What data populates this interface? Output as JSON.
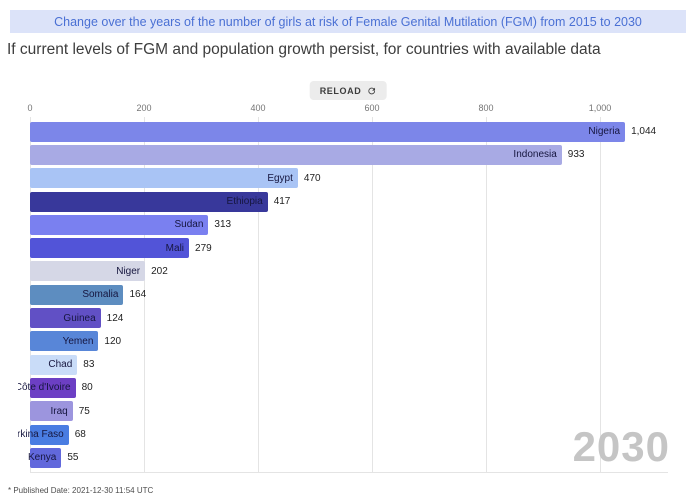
{
  "header": {
    "title": "Change over the years of the number of girls at risk of Female Genital Mutilation (FGM) from 2015 to 2030",
    "subtitle": "If current levels of FGM and population growth persist, for countries with available data"
  },
  "toolbar": {
    "reload_label": "RELOAD",
    "reload_icon": "refresh-icon"
  },
  "chart_data": {
    "type": "bar",
    "orientation": "horizontal",
    "title": "Change over the years of the number of girls at risk of Female Genital Mutilation (FGM) from 2015 to 2030",
    "subtitle": "If current levels of FGM and population growth persist, for countries with available data",
    "xlabel": "",
    "ylabel": "",
    "xlim": [
      0,
      1100
    ],
    "grid": true,
    "x_ticks": [
      0,
      200,
      400,
      600,
      800,
      1000
    ],
    "x_tick_labels": [
      "0",
      "200",
      "400",
      "600",
      "800",
      "1,000"
    ],
    "year_label": "2030",
    "bars": [
      {
        "label": "Nigeria",
        "value": 1044,
        "display_value": "1,044",
        "color": "#7c86e9"
      },
      {
        "label": "Indonesia",
        "value": 933,
        "display_value": "933",
        "color": "#a8aae4"
      },
      {
        "label": "Egypt",
        "value": 470,
        "display_value": "470",
        "color": "#a9c4f5"
      },
      {
        "label": "Ethiopia",
        "value": 417,
        "display_value": "417",
        "color": "#38389b"
      },
      {
        "label": "Sudan",
        "value": 313,
        "display_value": "313",
        "color": "#7a80f0"
      },
      {
        "label": "Mali",
        "value": 279,
        "display_value": "279",
        "color": "#5254d8"
      },
      {
        "label": "Niger",
        "value": 202,
        "display_value": "202",
        "color": "#d5d7e6"
      },
      {
        "label": "Somalia",
        "value": 164,
        "display_value": "164",
        "color": "#5d8dc0"
      },
      {
        "label": "Guinea",
        "value": 124,
        "display_value": "124",
        "color": "#6150c5"
      },
      {
        "label": "Yemen",
        "value": 120,
        "display_value": "120",
        "color": "#5886d8"
      },
      {
        "label": "Chad",
        "value": 83,
        "display_value": "83",
        "color": "#c9dcf8"
      },
      {
        "label": "Côte d'Ivoire",
        "value": 80,
        "display_value": "80",
        "color": "#6c3fc4"
      },
      {
        "label": "Iraq",
        "value": 75,
        "display_value": "75",
        "color": "#9c95de"
      },
      {
        "label": "Burkina Faso",
        "value": 68,
        "display_value": "68",
        "color": "#4a7de2"
      },
      {
        "label": "Kenya",
        "value": 55,
        "display_value": "55",
        "color": "#6168dc"
      }
    ]
  },
  "colors": {
    "banner_bg": "#dce3f9",
    "banner_text": "#4a70d4",
    "gridline": "#e4e4e4",
    "watermark": "#c5c5c5"
  },
  "footer": {
    "note": "* Published Date: 2021-12-30 11:54 UTC"
  }
}
